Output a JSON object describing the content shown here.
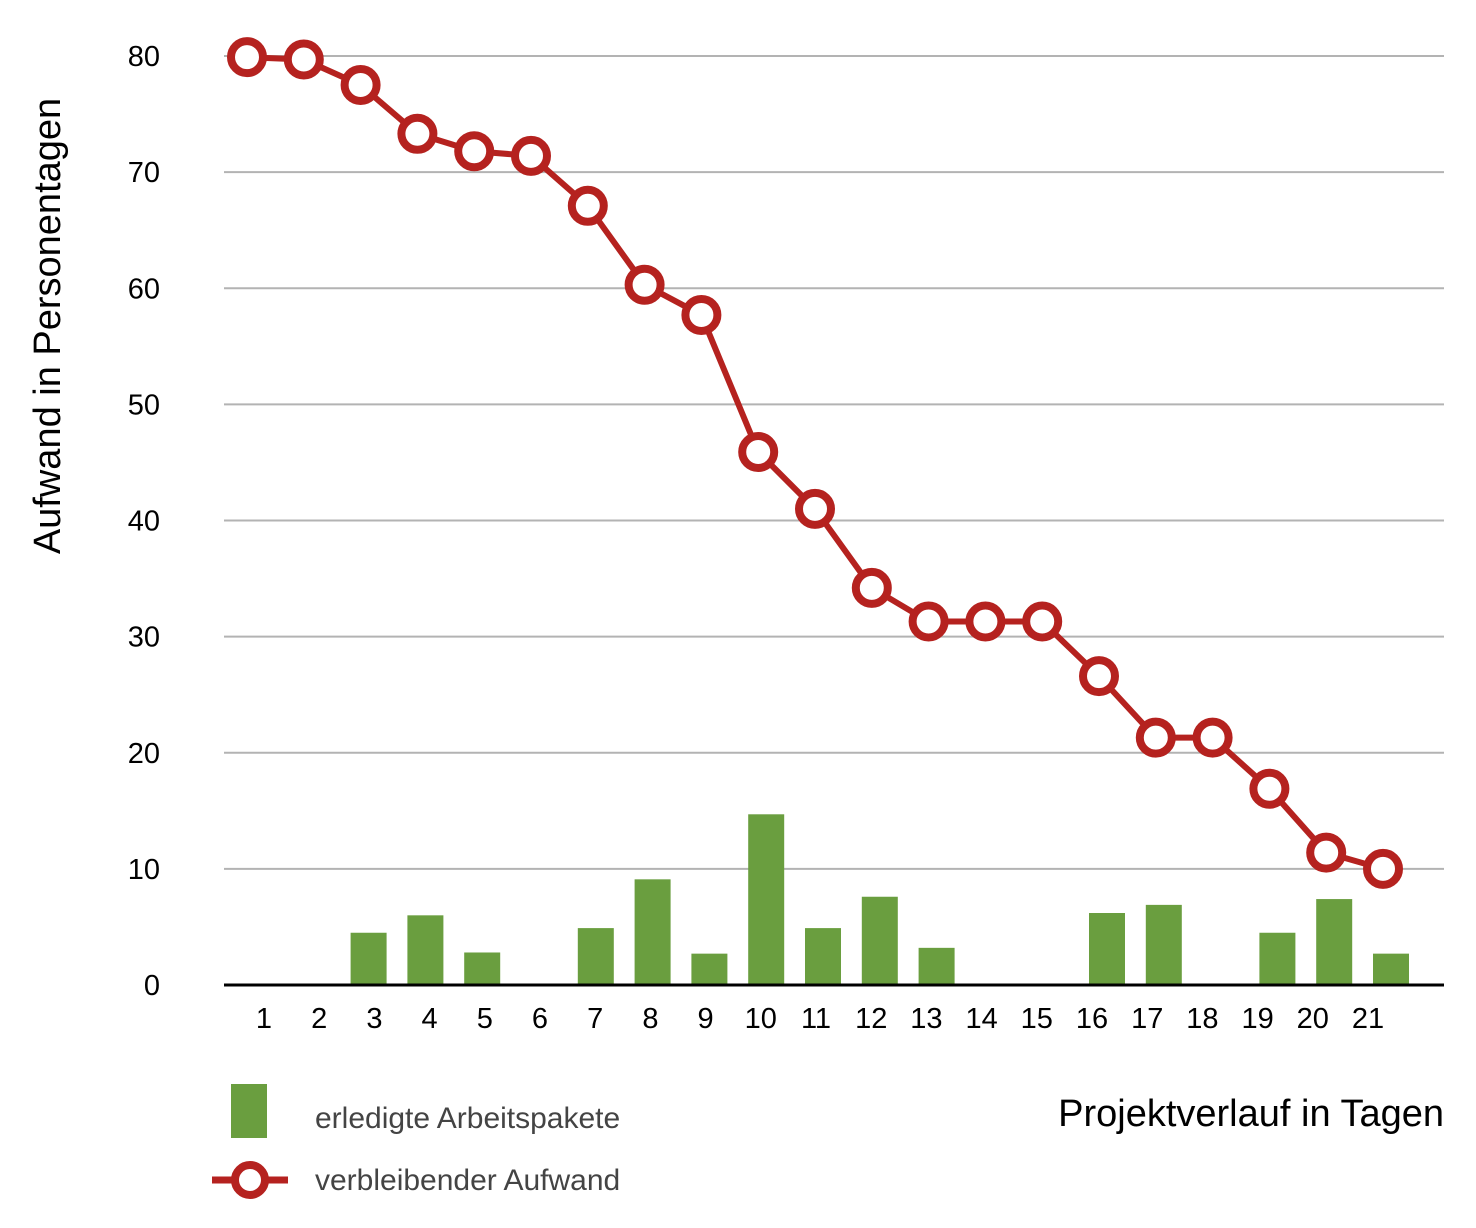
{
  "chart_data": {
    "type": "bar+line",
    "xlabel": "Projektverlauf in Tagen",
    "ylabel": "Aufwand in Personentagen",
    "ylim": [
      0,
      80
    ],
    "yticks": [
      0,
      10,
      20,
      30,
      40,
      50,
      60,
      70,
      80
    ],
    "grid": true,
    "legend_position": "bottom-left",
    "bar_series": {
      "name": "erledigte Arbeitspakete",
      "color": "#6a9e3f",
      "x": [
        3,
        4,
        5,
        7,
        8,
        9,
        10,
        11,
        12,
        13,
        16,
        17,
        19,
        20,
        21
      ],
      "values": [
        4.5,
        6.0,
        2.8,
        4.9,
        9.1,
        2.7,
        14.7,
        4.9,
        7.6,
        3.2,
        6.2,
        6.9,
        4.5,
        7.4,
        2.7
      ]
    },
    "line_series": {
      "name": "verbleibender Aufwand",
      "color": "#b5221f",
      "x": [
        1,
        2,
        3,
        4,
        5,
        6,
        7,
        8,
        9,
        10,
        11,
        12,
        13,
        14,
        15,
        16,
        17,
        18,
        19,
        20,
        21
      ],
      "values": [
        79.9,
        79.7,
        77.5,
        73.3,
        71.8,
        71.4,
        67.1,
        60.3,
        57.7,
        45.9,
        41.0,
        34.2,
        31.3,
        31.3,
        31.3,
        26.6,
        21.3,
        21.3,
        16.9,
        11.4,
        10.0
      ]
    },
    "x_categories": [
      "1",
      "2",
      "3",
      "4",
      "5",
      "6",
      "7",
      "8",
      "9",
      "10",
      "11",
      "12",
      "13",
      "14",
      "15",
      "16",
      "17",
      "18",
      "19",
      "20",
      "21"
    ]
  }
}
